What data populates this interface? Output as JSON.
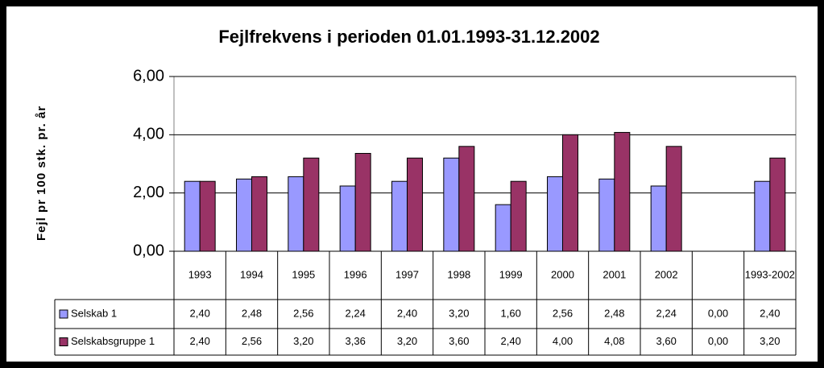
{
  "chart_data": {
    "type": "bar",
    "title": "Fejlfrekvens i perioden 01.01.1993-31.12.2002",
    "y_label": "Fejl pr 100 stk. pr. år",
    "categories": [
      "1993",
      "1994",
      "1995",
      "1996",
      "1997",
      "1998",
      "1999",
      "2000",
      "2001",
      "2002",
      null,
      "1993-2002"
    ],
    "series": [
      {
        "name": "Selskab 1",
        "color": "#9999ff",
        "values": [
          2.4,
          2.48,
          2.56,
          2.24,
          2.4,
          3.2,
          1.6,
          2.56,
          2.48,
          2.24,
          0.0,
          2.4
        ],
        "value_labels": [
          "2,40",
          "2,48",
          "2,56",
          "2,24",
          "2,40",
          "3,20",
          "1,60",
          "2,56",
          "2,48",
          "2,24",
          "0,00",
          "2,40"
        ]
      },
      {
        "name": "Selskabsgruppe 1",
        "color": "#993366",
        "values": [
          2.4,
          2.56,
          3.2,
          3.36,
          3.2,
          3.6,
          2.4,
          4.0,
          4.08,
          3.6,
          0.0,
          3.2
        ],
        "value_labels": [
          "2,40",
          "2,56",
          "3,20",
          "3,36",
          "3,20",
          "3,60",
          "2,40",
          "4,00",
          "4,08",
          "3,60",
          "0,00",
          "3,20"
        ]
      }
    ],
    "ylim": [
      0,
      6
    ],
    "yticks": [
      {
        "value": 0,
        "label": "0,00"
      },
      {
        "value": 2,
        "label": "2,00"
      },
      {
        "value": 4,
        "label": "4,00"
      },
      {
        "value": 6,
        "label": "6,00"
      }
    ],
    "grid": true
  }
}
